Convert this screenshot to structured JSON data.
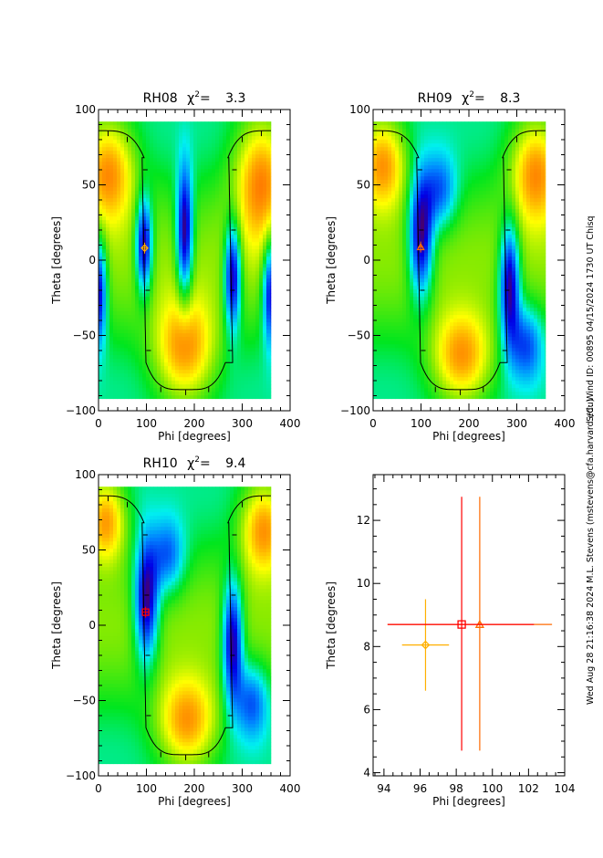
{
  "side_labels": {
    "top": "S/C: Wind ID: 00895 04/15/2024   1730 UT Chisq",
    "bottom": "Wed Aug 28 21:16:38 2024   M.L. Stevens (mstevens@cfa.harvard.edu)"
  },
  "colors": {
    "rh08_marker": "#ffb000",
    "rh09_marker": "#ff6a00",
    "rh10_marker": "#ff0000",
    "curve": "#000000"
  },
  "chart_data": [
    {
      "type": "heatmap",
      "id": "rh08",
      "title_name": "RH08",
      "title_chi": "χ",
      "title_sup": "2",
      "title_eq": "=",
      "title_value": "3.3",
      "xlabel": "Phi [degrees]",
      "ylabel": "Theta [degrees]",
      "xlim": [
        0,
        400
      ],
      "ylim": [
        -100,
        100
      ],
      "xticks": [
        "0",
        "100",
        "200",
        "300",
        "400"
      ],
      "yticks": [
        "-100",
        "-50",
        "0",
        "50",
        "100"
      ],
      "marker": {
        "shape": "diamond",
        "phi": 96.3,
        "theta": 8.0
      },
      "blobs": [
        {
          "phi": 95,
          "theta": 10,
          "kind": "min",
          "sphi": 12,
          "stheta": 22,
          "amp": 1.0
        },
        {
          "phi": 180,
          "theta": 18,
          "kind": "min",
          "sphi": 12,
          "stheta": 30,
          "amp": 1.0
        },
        {
          "phi": 280,
          "theta": -10,
          "kind": "min",
          "sphi": 12,
          "stheta": 25,
          "amp": 1.0
        },
        {
          "phi": 0,
          "theta": -20,
          "kind": "min",
          "sphi": 12,
          "stheta": 25,
          "amp": 0.9
        },
        {
          "phi": 360,
          "theta": -20,
          "kind": "min",
          "sphi": 12,
          "stheta": 25,
          "amp": 0.9
        },
        {
          "phi": 20,
          "theta": 60,
          "kind": "max",
          "sphi": 40,
          "stheta": 25,
          "amp": 1.0
        },
        {
          "phi": 340,
          "theta": 55,
          "kind": "max",
          "sphi": 40,
          "stheta": 30,
          "amp": 1.0
        },
        {
          "phi": 180,
          "theta": -60,
          "kind": "max",
          "sphi": 45,
          "stheta": 25,
          "amp": 1.0
        }
      ]
    },
    {
      "type": "heatmap",
      "id": "rh09",
      "title_name": "RH09",
      "title_chi": "χ",
      "title_sup": "2",
      "title_eq": "=",
      "title_value": "8.3",
      "xlabel": "Phi [degrees]",
      "ylabel": "Theta [degrees]",
      "xlim": [
        0,
        400
      ],
      "ylim": [
        -100,
        100
      ],
      "xticks": [
        "0",
        "100",
        "200",
        "300",
        "400"
      ],
      "yticks": [
        "-100",
        "-50",
        "0",
        "50",
        "100"
      ],
      "marker": {
        "shape": "triangle",
        "phi": 99.3,
        "theta": 8.7
      },
      "blobs": [
        {
          "phi": 100,
          "theta": 15,
          "kind": "min",
          "sphi": 18,
          "stheta": 28,
          "amp": 1.0
        },
        {
          "phi": 140,
          "theta": 45,
          "kind": "min",
          "sphi": 25,
          "stheta": 18,
          "amp": 0.55
        },
        {
          "phi": 285,
          "theta": -15,
          "kind": "min",
          "sphi": 15,
          "stheta": 28,
          "amp": 1.0
        },
        {
          "phi": 320,
          "theta": -55,
          "kind": "min",
          "sphi": 25,
          "stheta": 18,
          "amp": 0.55
        },
        {
          "phi": 20,
          "theta": 65,
          "kind": "max",
          "sphi": 35,
          "stheta": 22,
          "amp": 1.0
        },
        {
          "phi": 340,
          "theta": 60,
          "kind": "max",
          "sphi": 38,
          "stheta": 25,
          "amp": 1.0
        },
        {
          "phi": 185,
          "theta": -65,
          "kind": "max",
          "sphi": 45,
          "stheta": 22,
          "amp": 1.0
        }
      ]
    },
    {
      "type": "heatmap",
      "id": "rh10",
      "title_name": "RH10",
      "title_chi": "χ",
      "title_sup": "2",
      "title_eq": "=",
      "title_value": "9.4",
      "xlabel": "Phi [degrees]",
      "ylabel": "Theta [degrees]",
      "xlim": [
        0,
        400
      ],
      "ylim": [
        -100,
        100
      ],
      "xticks": [
        "0",
        "100",
        "200",
        "300",
        "400"
      ],
      "yticks": [
        "-100",
        "-50",
        "0",
        "50",
        "100"
      ],
      "marker": {
        "shape": "square",
        "phi": 98.3,
        "theta": 8.7
      },
      "blobs": [
        {
          "phi": 100,
          "theta": 15,
          "kind": "min",
          "sphi": 18,
          "stheta": 28,
          "amp": 1.0
        },
        {
          "phi": 145,
          "theta": 45,
          "kind": "min",
          "sphi": 25,
          "stheta": 18,
          "amp": 0.55
        },
        {
          "phi": 280,
          "theta": -10,
          "kind": "min",
          "sphi": 15,
          "stheta": 28,
          "amp": 1.0
        },
        {
          "phi": 320,
          "theta": -50,
          "kind": "min",
          "sphi": 25,
          "stheta": 18,
          "amp": 0.55
        },
        {
          "phi": 15,
          "theta": 70,
          "kind": "max",
          "sphi": 30,
          "stheta": 20,
          "amp": 1.0
        },
        {
          "phi": 345,
          "theta": 65,
          "kind": "max",
          "sphi": 35,
          "stheta": 22,
          "amp": 1.0
        },
        {
          "phi": 185,
          "theta": -65,
          "kind": "max",
          "sphi": 45,
          "stheta": 22,
          "amp": 1.0
        }
      ]
    },
    {
      "type": "scatter",
      "id": "summary",
      "xlabel": "Phi [degrees]",
      "ylabel": "Theta [degrees]",
      "xlim": [
        93.4,
        104
      ],
      "ylim": [
        3.9,
        13.45
      ],
      "xticks": [
        "94",
        "96",
        "98",
        "100",
        "102",
        "104"
      ],
      "yticks": [
        "4",
        "6",
        "8",
        "10",
        "12"
      ],
      "points": [
        {
          "name": "RH08",
          "shape": "diamond",
          "phi": 96.3,
          "theta": 8.05,
          "phi_err": [
            95.0,
            97.6
          ],
          "theta_err": [
            6.6,
            9.5
          ]
        },
        {
          "name": "RH09",
          "shape": "triangle",
          "phi": 99.3,
          "theta": 8.7,
          "phi_err": [
            94.2,
            103.3
          ],
          "theta_err": [
            4.7,
            12.75
          ]
        },
        {
          "name": "RH10",
          "shape": "square",
          "phi": 98.3,
          "theta": 8.7,
          "phi_err": [
            94.2,
            102.3
          ],
          "theta_err": [
            4.7,
            12.75
          ]
        }
      ]
    }
  ]
}
